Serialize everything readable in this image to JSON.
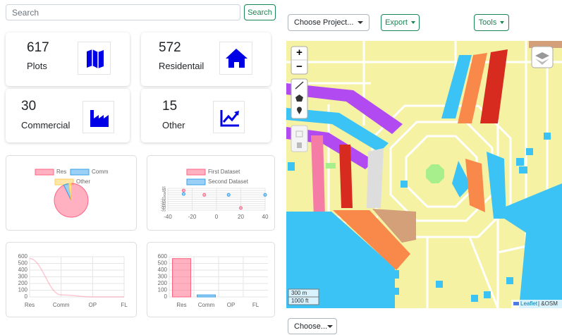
{
  "search": {
    "placeholder": "Search",
    "button": "Search"
  },
  "toolbar": {
    "project": "Choose Project...",
    "export": "Export",
    "tools": "Tools",
    "bottom": "Choose..."
  },
  "stats": [
    {
      "value": "617",
      "label": "Plots"
    },
    {
      "value": "572",
      "label": "Residentail"
    },
    {
      "value": "30",
      "label": "Commercial"
    },
    {
      "value": "15",
      "label": "Other"
    }
  ],
  "map": {
    "zoom_in": "+",
    "zoom_out": "−",
    "scale_m": "300 m",
    "scale_ft": "1000 ft",
    "leaflet": "Leaflet",
    "osm": "| &OSM"
  },
  "chart_data": [
    {
      "type": "pie",
      "categories": [
        "Res",
        "Comm",
        "Other"
      ],
      "values": [
        572,
        30,
        15
      ],
      "colors": [
        "#ff6384",
        "#36a2eb",
        "#ffcd56"
      ]
    },
    {
      "type": "scatter",
      "xlim": [
        -40,
        40
      ],
      "xticks": [
        -40,
        -20,
        0,
        20,
        40
      ],
      "ylim": [
        -35,
        15
      ],
      "yticks": [
        15,
        10,
        5,
        0,
        -5,
        -10,
        -15,
        -20,
        -25,
        -30,
        -35
      ],
      "grid": true,
      "series": [
        {
          "name": "First Dataset",
          "color": "#ff6384",
          "x": [
            -27,
            -10,
            20
          ],
          "values": [
            10,
            0,
            -30
          ]
        },
        {
          "name": "Second Dataset",
          "color": "#36a2eb",
          "x": [
            -27,
            10,
            40
          ],
          "values": [
            2,
            0,
            0
          ]
        }
      ]
    },
    {
      "type": "line",
      "categories": [
        "Res",
        "Comm",
        "OP",
        "FL"
      ],
      "values": [
        572,
        30,
        0,
        0
      ],
      "color": "#ff6384",
      "ylim": [
        0,
        600
      ],
      "yticks": [
        0,
        100,
        200,
        300,
        400,
        500,
        600
      ],
      "grid": true
    },
    {
      "type": "bar",
      "categories": [
        "Res",
        "Comm",
        "OP",
        "FL"
      ],
      "values": [
        572,
        30,
        0,
        0
      ],
      "colors": [
        "#ff6384",
        "#36a2eb",
        "#ffcd56",
        "#4bc0c0"
      ],
      "ylim": [
        0,
        600
      ],
      "yticks": [
        0,
        100,
        200,
        300,
        400,
        500,
        600
      ],
      "grid": true
    }
  ]
}
